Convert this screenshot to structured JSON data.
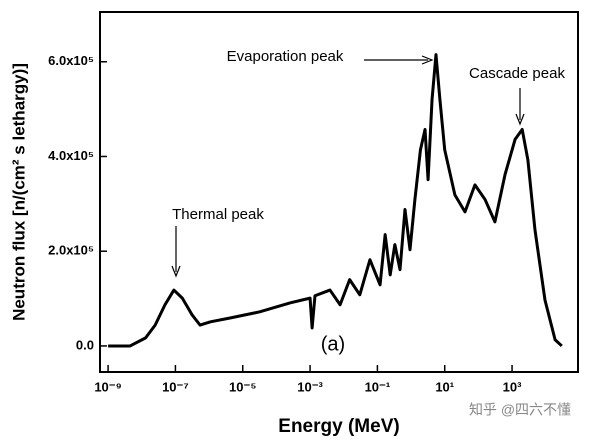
{
  "chart_data": {
    "type": "line",
    "xscale": "log",
    "xlabel": "Energy (MeV)",
    "ylabel": "Neutron flux [n/(cm² s lethargy)]",
    "color": "#000000",
    "x": [
      1e-09,
      4.5e-09,
      1.3e-08,
      2.5e-08,
      4.9e-08,
      9e-08,
      1.6e-07,
      3.1e-07,
      5.4e-07,
      1.1e-06,
      4.2e-06,
      3.2e-05,
      0.00026,
      0.001,
      0.00115,
      0.0014,
      0.0039,
      0.0078,
      0.015,
      0.03,
      0.06,
      0.12,
      0.17,
      0.24,
      0.33,
      0.47,
      0.66,
      0.93,
      1.3,
      1.9,
      2.6,
      3.2,
      4.2,
      5.5,
      7.2,
      10,
      20,
      40,
      79,
      158,
      310,
      620,
      1230,
      2000,
      2950,
      4800,
      9500,
      19000,
      30000
    ],
    "values": [
      0,
      0,
      17000,
      44000,
      87000,
      118000,
      101000,
      66000,
      44000,
      51000,
      59000,
      72000,
      91000,
      101000,
      38000,
      106000,
      118000,
      87000,
      140000,
      108000,
      182000,
      129000,
      235000,
      150000,
      214000,
      161000,
      288000,
      203000,
      309000,
      414000,
      457000,
      351000,
      520000,
      615000,
      520000,
      414000,
      319000,
      283000,
      340000,
      309000,
      262000,
      362000,
      436000,
      457000,
      393000,
      245000,
      97000,
      13000,
      0
    ],
    "xlim": [
      5.75e-10,
      91000
    ],
    "ylim": [
      -55000,
      705000
    ],
    "xticks": [
      {
        "value": 1e-09,
        "label": "10⁻⁹"
      },
      {
        "value": 1e-07,
        "label": "10⁻⁷"
      },
      {
        "value": 1e-05,
        "label": "10⁻⁵"
      },
      {
        "value": 0.001,
        "label": "10⁻³"
      },
      {
        "value": 0.1,
        "label": "10⁻¹"
      },
      {
        "value": 10,
        "label": "10¹"
      },
      {
        "value": 1000,
        "label": "10³"
      }
    ],
    "yticks": [
      {
        "value": 0,
        "label": "0.0"
      },
      {
        "value": 200000,
        "label": "2.0x10⁵"
      },
      {
        "value": 400000,
        "label": "4.0x10⁵"
      },
      {
        "value": 600000,
        "label": "6.0x10⁵"
      }
    ],
    "annotations": [
      "Thermal peak",
      "Evaporation peak",
      "Cascade peak",
      "(a)"
    ],
    "watermark": "知乎 @四六不懂"
  }
}
